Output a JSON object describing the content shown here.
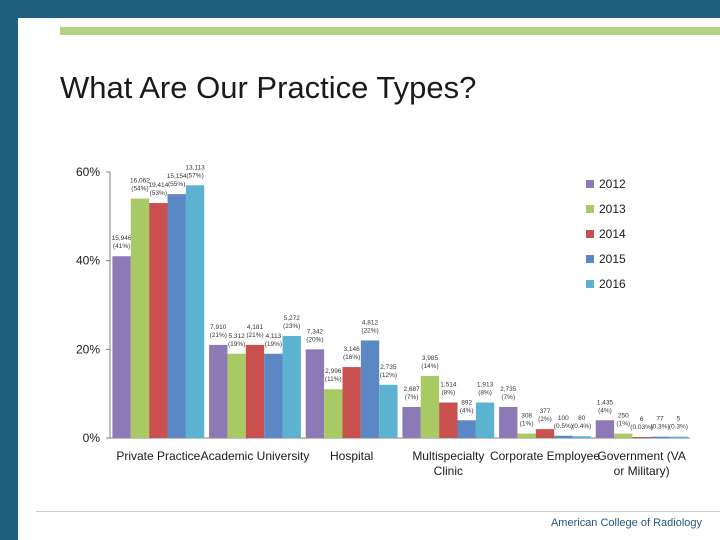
{
  "slide": {
    "title": "What Are Our Practice Types?",
    "footer": "American College of Radiology"
  },
  "colors": {
    "frame": "#1f5f7f",
    "accent": "#b3d183"
  },
  "chart_data": {
    "type": "bar",
    "title": "",
    "xlabel": "",
    "ylabel": "",
    "ylim": [
      0,
      60
    ],
    "yticks": [
      "0%",
      "20%",
      "40%",
      "60%"
    ],
    "legend_position": "right",
    "grid": false,
    "categories": [
      "Private Practice",
      "Academic University",
      "Hospital",
      "Multispecialty Clinic",
      "Corporate Employee",
      "Government (VA or Military)"
    ],
    "series": [
      {
        "name": "2012",
        "color": "#8c79b6",
        "values": [
          41,
          21,
          20,
          7,
          7,
          4
        ],
        "labels": [
          "15,946 (41%)",
          "7,910 (21%)",
          "7,342 (20%)",
          "2,687 (7%)",
          "2,735 (7%)",
          "1,435 (4%)"
        ]
      },
      {
        "name": "2013",
        "color": "#a9c964",
        "values": [
          54,
          19,
          11,
          14,
          1,
          1
        ],
        "labels": [
          "16,062 (54%)",
          "5,312 (19%)",
          "2,996 (11%)",
          "3,985 (14%)",
          "308 (1%)",
          "250 (1%)"
        ]
      },
      {
        "name": "2014",
        "color": "#c9514d",
        "values": [
          53,
          21,
          16,
          8,
          2,
          0
        ],
        "labels": [
          "19,414 (53%)",
          "4,181 (21%)",
          "3,146 (16%)",
          "1,514 (8%)",
          "377 (2%)",
          "6 (0.03%)"
        ]
      },
      {
        "name": "2015",
        "color": "#5b87c4",
        "values": [
          55,
          19,
          22,
          4,
          0.5,
          0.3
        ],
        "labels": [
          "15,154 (55%)",
          "4,113 (19%)",
          "4,812 (22%)",
          "892 (4%)",
          "100 (0.5%)",
          "77 (0.3%)"
        ]
      },
      {
        "name": "2016",
        "color": "#5bb3d1",
        "values": [
          57,
          23,
          12,
          8,
          0.4,
          0.3
        ],
        "labels": [
          "13,113 (57%)",
          "5,272 (23%)",
          "2,735 (12%)",
          "1,913 (8%)",
          "80 (0.4%)",
          "5 (0.3%)"
        ]
      }
    ]
  }
}
